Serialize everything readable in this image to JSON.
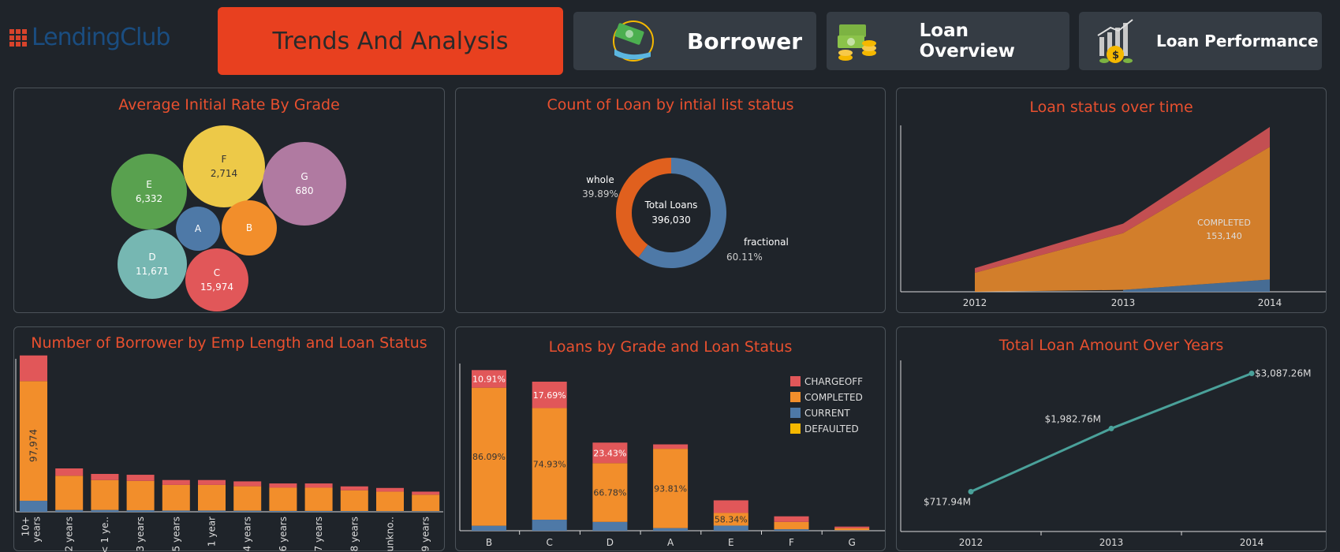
{
  "header": {
    "logo_text": "LendingClub",
    "nav": [
      {
        "label": "Trends And Analysis",
        "active": true
      },
      {
        "label": "Borrower",
        "icon": "money-hand-icon"
      },
      {
        "label": "Loan Overview",
        "icon": "money-stack-icon"
      },
      {
        "label": "Loan Performance",
        "icon": "growth-chart-icon"
      }
    ]
  },
  "colors": {
    "accent": "#e8401f",
    "title": "#e8502f",
    "chargeoff": "#e15759",
    "completed": "#f28e2b",
    "current": "#4e79a7",
    "defaulted": "#f5b800",
    "line": "#4aa19a"
  },
  "panels": {
    "bubbles_title": "Average Initial Rate By Grade",
    "donut_title": "Count of Loan by intial list status",
    "area_title": "Loan status over time",
    "emp_title": "Number of Borrower by Emp Length and Loan Status",
    "grade_title": "Loans  by Grade and Loan Status",
    "amount_title": "Total Loan Amount Over Years"
  },
  "chart_data": [
    {
      "type": "bubble",
      "title": "Average Initial Rate By Grade",
      "bubbles": [
        {
          "label": "E",
          "value": "6,332",
          "color": "#59a14f"
        },
        {
          "label": "F",
          "value": "2,714",
          "color": "#edc948"
        },
        {
          "label": "G",
          "value": "680",
          "color": "#b07aa1"
        },
        {
          "label": "A",
          "value": "",
          "color": "#4e79a7"
        },
        {
          "label": "B",
          "value": "",
          "color": "#f28e2b"
        },
        {
          "label": "D",
          "value": "11,671",
          "color": "#76b7b2"
        },
        {
          "label": "C",
          "value": "15,974",
          "color": "#e15759"
        }
      ]
    },
    {
      "type": "pie",
      "title": "Count of Loan by intial list status",
      "center_label": "Total Loans",
      "center_value": "396,030",
      "slices": [
        {
          "label": "fractional",
          "pct": 60.11,
          "pct_text": "60.11%",
          "color": "#4e79a7"
        },
        {
          "label": "whole",
          "pct": 39.89,
          "pct_text": "39.89%",
          "color": "#e0601e"
        }
      ]
    },
    {
      "type": "area",
      "title": "Loan status over time",
      "x": [
        "2012",
        "2013",
        "2014"
      ],
      "series": [
        {
          "name": "CURRENT",
          "values": [
            0,
            2000,
            13000
          ],
          "color": "#4e79a7"
        },
        {
          "name": "COMPLETED",
          "values": [
            20000,
            60000,
            140140
          ],
          "color": "#f28e2b"
        },
        {
          "name": "CHARGEOFF",
          "values": [
            5000,
            10000,
            21000
          ],
          "color": "#e15759"
        }
      ],
      "annotation_name": "COMPLETED",
      "annotation_value": "153,140",
      "ylim": [
        0,
        190000
      ]
    },
    {
      "type": "bar",
      "title": "Number of Borrower by Emp Length and Loan Status",
      "categories": [
        "10+ years",
        "2 years",
        "< 1 ye..",
        "3 years",
        "5 years",
        "1 year",
        "4 years",
        "6 years",
        "7 years",
        "8 years",
        "unkno..",
        "9 years"
      ],
      "series": [
        {
          "name": "CURRENT",
          "values": [
            9000,
            1500,
            1500,
            1300,
            1000,
            1000,
            900,
            700,
            700,
            600,
            500,
            500
          ]
        },
        {
          "name": "COMPLETED",
          "values": [
            97974,
            28000,
            24500,
            24000,
            21000,
            21000,
            20000,
            19000,
            19000,
            17000,
            16000,
            13500
          ]
        },
        {
          "name": "CHARGEOFF",
          "values": [
            21000,
            6000,
            5000,
            5000,
            4000,
            4000,
            4000,
            3500,
            3500,
            3200,
            3000,
            2500
          ]
        }
      ],
      "data_label": "97,974",
      "ylim": [
        0,
        130000
      ]
    },
    {
      "type": "bar",
      "title": "Loans  by Grade and Loan Status",
      "categories": [
        "B",
        "C",
        "D",
        "A",
        "E",
        "F",
        "G"
      ],
      "series": [
        {
          "name": "CHARGEOFF",
          "values": [
            12000,
            18000,
            14000,
            3000,
            8600,
            3800,
            1100
          ]
        },
        {
          "name": "COMPLETED",
          "values": [
            94000,
            76000,
            40000,
            54000,
            8600,
            5000,
            1400
          ]
        },
        {
          "name": "CURRENT",
          "values": [
            3400,
            7500,
            6000,
            1800,
            3500,
            1000,
            300
          ]
        },
        {
          "name": "DEFAULTED",
          "values": [
            0,
            0,
            0,
            0,
            0,
            0,
            0
          ]
        }
      ],
      "completed_pct": [
        "86.09%",
        "74.93%",
        "66.78%",
        "93.81%",
        "58.34%",
        "",
        ""
      ],
      "chargeoff_pct": [
        "10.91%",
        "17.69%",
        "23.43%",
        "",
        "",
        "",
        ""
      ],
      "legend": [
        "CHARGEOFF",
        "COMPLETED",
        "CURRENT",
        "DEFAULTED"
      ],
      "ylim": [
        0,
        115000
      ]
    },
    {
      "type": "line",
      "title": "Total Loan Amount Over Years",
      "x": [
        "2012",
        "2013",
        "2014"
      ],
      "values": [
        717.94,
        1982.76,
        3087.26
      ],
      "labels": [
        "$717.94M",
        "$1,982.76M",
        "$3,087.26M"
      ],
      "ylim": [
        0,
        3300
      ]
    }
  ]
}
